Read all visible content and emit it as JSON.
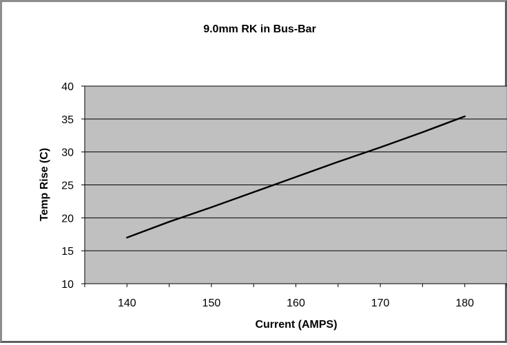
{
  "chart_data": {
    "type": "line",
    "title": "9.0mm RK in Bus-Bar",
    "xlabel": "Current (AMPS)",
    "ylabel": "Temp Rise (C)",
    "xlim": [
      135,
      185
    ],
    "ylim": [
      10,
      40
    ],
    "xticks": [
      140,
      150,
      160,
      170,
      180
    ],
    "yticks": [
      10,
      15,
      20,
      25,
      30,
      35,
      40
    ],
    "grid": true,
    "plot_background": "#c0c0c0",
    "line_color": "#000000",
    "series": [
      {
        "x": [
          140,
          145,
          150,
          155,
          160,
          165,
          170,
          175,
          180
        ],
        "values": [
          17.0,
          19.4,
          21.6,
          23.9,
          26.2,
          28.5,
          30.7,
          33.0,
          35.4
        ]
      }
    ]
  }
}
